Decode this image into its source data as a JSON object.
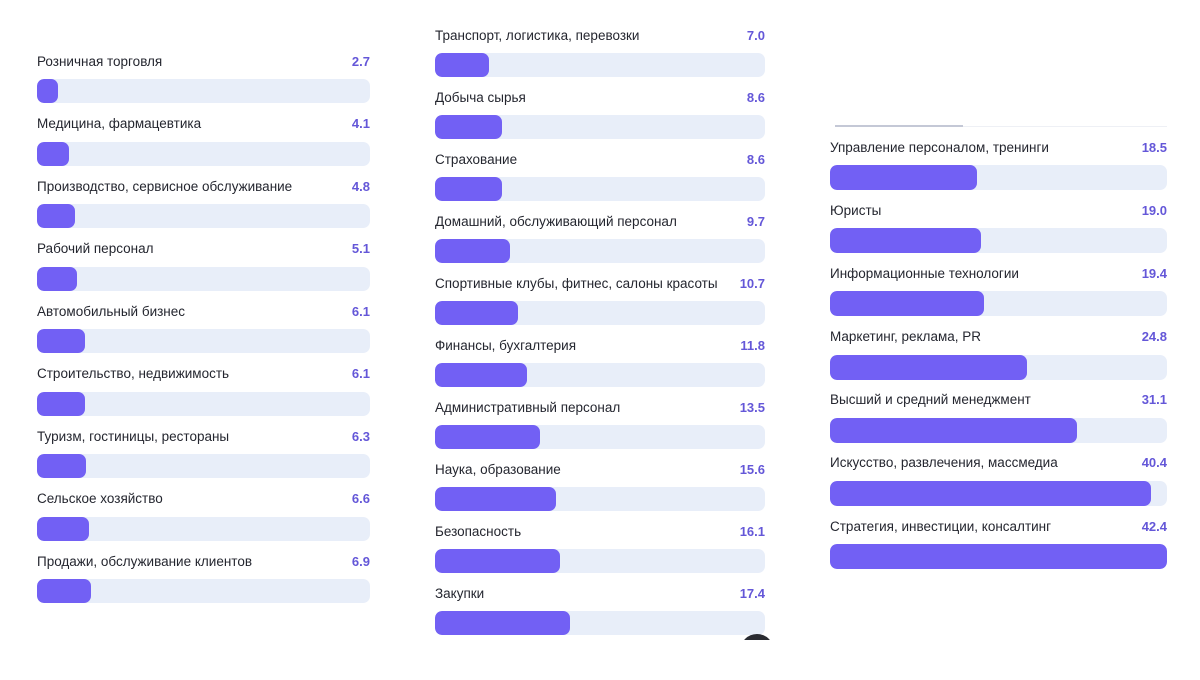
{
  "chart_data": [
    {
      "type": "bar",
      "orientation": "horizontal",
      "xlim": [
        0,
        42.4
      ],
      "categories": [
        "Розничная торговля",
        "Медицина, фармацевтика",
        "Производство, сервисное обслуживание",
        "Рабочий персонал",
        "Автомобильный бизнес",
        "Строительство, недвижимость",
        "Туризм, гостиницы, рестораны",
        "Сельское хозяйство",
        "Продажи, обслуживание клиентов"
      ],
      "values": [
        2.7,
        4.1,
        4.8,
        5.1,
        6.1,
        6.1,
        6.3,
        6.6,
        6.9
      ],
      "value_labels": [
        "2.7",
        "4.1",
        "4.8",
        "5.1",
        "6.1",
        "6.1",
        "6.3",
        "6.6",
        "6.9"
      ]
    },
    {
      "type": "bar",
      "orientation": "horizontal",
      "xlim": [
        0,
        42.4
      ],
      "categories": [
        "Транспорт, логистика, перевозки",
        "Добыча сырья",
        "Страхование",
        "Домашний, обслуживающий персонал",
        "Спортивные клубы, фитнес, салоны красоты",
        "Финансы, бухгалтерия",
        "Административный персонал",
        "Наука, образование",
        "Безопасность",
        "Закупки"
      ],
      "values": [
        7.0,
        8.6,
        8.6,
        9.7,
        10.7,
        11.8,
        13.5,
        15.6,
        16.1,
        17.4
      ],
      "value_labels": [
        "7.0",
        "8.6",
        "8.6",
        "9.7",
        "10.7",
        "11.8",
        "13.5",
        "15.6",
        "16.1",
        "17.4"
      ]
    },
    {
      "type": "bar",
      "orientation": "horizontal",
      "xlim": [
        0,
        42.4
      ],
      "categories": [
        "Управление персоналом, тренинги",
        "Юристы",
        "Информационные технологии",
        "Маркетинг, реклама, PR",
        "Высший и средний менеджмент",
        "Искусство, развлечения, массмедиа",
        "Стратегия, инвестиции, консалтинг"
      ],
      "values": [
        18.5,
        19.0,
        19.4,
        24.8,
        31.1,
        40.4,
        42.4
      ],
      "value_labels": [
        "18.5",
        "19.0",
        "19.4",
        "24.8",
        "31.1",
        "40.4",
        "42.4"
      ]
    }
  ],
  "colors": {
    "bar_fill": "#7260f4",
    "bar_track": "#e8eef9",
    "value_text": "#6457d8",
    "label_text": "#24262f"
  }
}
